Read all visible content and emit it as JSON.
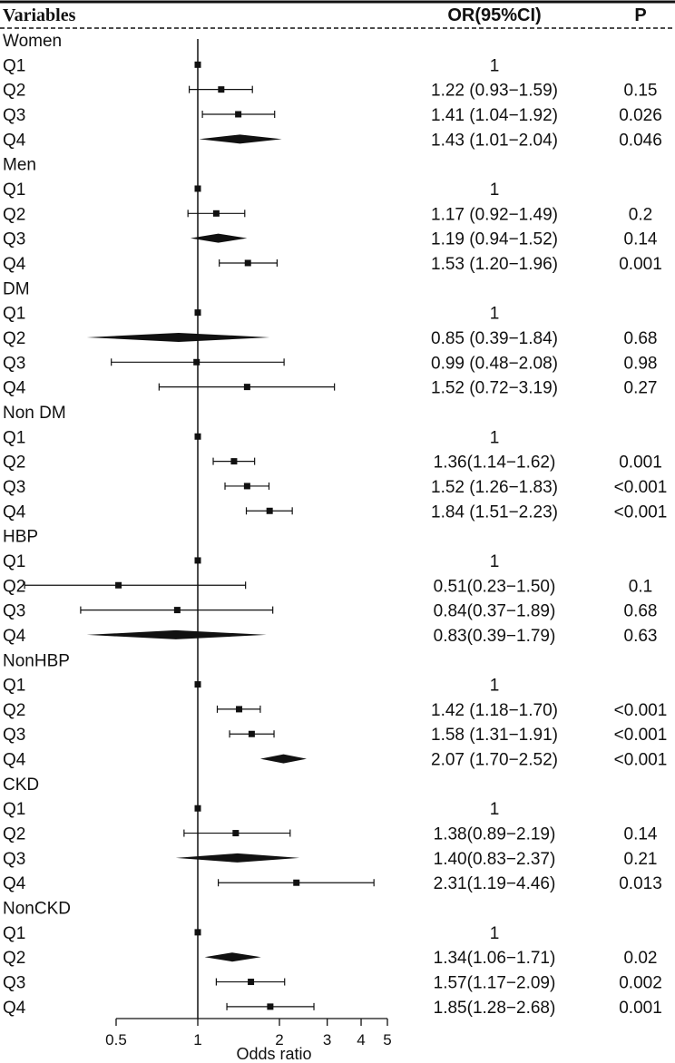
{
  "chart_data": {
    "type": "forest",
    "header": {
      "variables": "Variables",
      "or_ci": "OR(95%CI)",
      "p": "P"
    },
    "xlabel": "Odds ratio",
    "x_ticks": [
      {
        "value": 0.5,
        "label": "0.5"
      },
      {
        "value": 1,
        "label": "1"
      },
      {
        "value": 2,
        "label": "2"
      },
      {
        "value": 3,
        "label": "3"
      },
      {
        "value": 4,
        "label": "4"
      },
      {
        "value": 5,
        "label": "5"
      }
    ],
    "reference_line": 1,
    "groups": [
      {
        "name": "Women",
        "rows": [
          {
            "label": "Q1",
            "or_text": "1",
            "p": "",
            "or": 1,
            "lo": null,
            "hi": null,
            "marker": "square"
          },
          {
            "label": "Q2",
            "or_text": "1.22 (0.93−1.59)",
            "p": "0.15",
            "or": 1.22,
            "lo": 0.93,
            "hi": 1.59,
            "marker": "square"
          },
          {
            "label": "Q3",
            "or_text": "1.41 (1.04−1.92)",
            "p": "0.026",
            "or": 1.41,
            "lo": 1.04,
            "hi": 1.92,
            "marker": "square"
          },
          {
            "label": "Q4",
            "or_text": "1.43 (1.01−2.04)",
            "p": "0.046",
            "or": 1.43,
            "lo": 1.01,
            "hi": 2.04,
            "marker": "diamond"
          }
        ]
      },
      {
        "name": "Men",
        "rows": [
          {
            "label": "Q1",
            "or_text": "1",
            "p": "",
            "or": 1,
            "lo": null,
            "hi": null,
            "marker": "square"
          },
          {
            "label": "Q2",
            "or_text": "1.17 (0.92−1.49)",
            "p": "0.2",
            "or": 1.17,
            "lo": 0.92,
            "hi": 1.49,
            "marker": "square"
          },
          {
            "label": "Q3",
            "or_text": "1.19 (0.94−1.52)",
            "p": "0.14",
            "or": 1.19,
            "lo": 0.94,
            "hi": 1.52,
            "marker": "diamond"
          },
          {
            "label": "Q4",
            "or_text": "1.53 (1.20−1.96)",
            "p": "0.001",
            "or": 1.53,
            "lo": 1.2,
            "hi": 1.96,
            "marker": "square"
          }
        ]
      },
      {
        "name": "DM",
        "rows": [
          {
            "label": "Q1",
            "or_text": "1",
            "p": "",
            "or": 1,
            "lo": null,
            "hi": null,
            "marker": "square"
          },
          {
            "label": "Q2",
            "or_text": "0.85 (0.39−1.84)",
            "p": "0.68",
            "or": 0.85,
            "lo": 0.39,
            "hi": 1.84,
            "marker": "diamond"
          },
          {
            "label": "Q3",
            "or_text": "0.99 (0.48−2.08)",
            "p": "0.98",
            "or": 0.99,
            "lo": 0.48,
            "hi": 2.08,
            "marker": "square"
          },
          {
            "label": "Q4",
            "or_text": "1.52 (0.72−3.19)",
            "p": "0.27",
            "or": 1.52,
            "lo": 0.72,
            "hi": 3.19,
            "marker": "square"
          }
        ]
      },
      {
        "name": "Non DM",
        "rows": [
          {
            "label": "Q1",
            "or_text": "1",
            "p": "",
            "or": 1,
            "lo": null,
            "hi": null,
            "marker": "square"
          },
          {
            "label": "Q2",
            "or_text": "1.36(1.14−1.62)",
            "p": "0.001",
            "or": 1.36,
            "lo": 1.14,
            "hi": 1.62,
            "marker": "square"
          },
          {
            "label": "Q3",
            "or_text": "1.52 (1.26−1.83)",
            "p": "<0.001",
            "or": 1.52,
            "lo": 1.26,
            "hi": 1.83,
            "marker": "square"
          },
          {
            "label": "Q4",
            "or_text": "1.84 (1.51−2.23)",
            "p": "<0.001",
            "or": 1.84,
            "lo": 1.51,
            "hi": 2.23,
            "marker": "square"
          }
        ]
      },
      {
        "name": "HBP",
        "rows": [
          {
            "label": "Q1",
            "or_text": "1",
            "p": "",
            "or": 1,
            "lo": null,
            "hi": null,
            "marker": "square"
          },
          {
            "label": "Q2",
            "or_text": "0.51(0.23−1.50)",
            "p": "0.1",
            "or": 0.51,
            "lo": 0.23,
            "hi": 1.5,
            "marker": "square"
          },
          {
            "label": "Q3",
            "or_text": "0.84(0.37−1.89)",
            "p": "0.68",
            "or": 0.84,
            "lo": 0.37,
            "hi": 1.89,
            "marker": "square"
          },
          {
            "label": "Q4",
            "or_text": "0.83(0.39−1.79)",
            "p": "0.63",
            "or": 0.83,
            "lo": 0.39,
            "hi": 1.79,
            "marker": "diamond"
          }
        ]
      },
      {
        "name": "NonHBP",
        "rows": [
          {
            "label": "Q1",
            "or_text": "1",
            "p": "",
            "or": 1,
            "lo": null,
            "hi": null,
            "marker": "square"
          },
          {
            "label": "Q2",
            "or_text": "1.42 (1.18−1.70)",
            "p": "<0.001",
            "or": 1.42,
            "lo": 1.18,
            "hi": 1.7,
            "marker": "square"
          },
          {
            "label": "Q3",
            "or_text": "1.58 (1.31−1.91)",
            "p": "<0.001",
            "or": 1.58,
            "lo": 1.31,
            "hi": 1.91,
            "marker": "square"
          },
          {
            "label": "Q4",
            "or_text": "2.07 (1.70−2.52)",
            "p": "<0.001",
            "or": 2.07,
            "lo": 1.7,
            "hi": 2.52,
            "marker": "diamond"
          }
        ]
      },
      {
        "name": "CKD",
        "rows": [
          {
            "label": "Q1",
            "or_text": "1",
            "p": "",
            "or": 1,
            "lo": null,
            "hi": null,
            "marker": "square"
          },
          {
            "label": "Q2",
            "or_text": "1.38(0.89−2.19)",
            "p": "0.14",
            "or": 1.38,
            "lo": 0.89,
            "hi": 2.19,
            "marker": "square"
          },
          {
            "label": "Q3",
            "or_text": "1.40(0.83−2.37)",
            "p": "0.21",
            "or": 1.4,
            "lo": 0.83,
            "hi": 2.37,
            "marker": "diamond"
          },
          {
            "label": "Q4",
            "or_text": "2.31(1.19−4.46)",
            "p": "0.013",
            "or": 2.31,
            "lo": 1.19,
            "hi": 4.46,
            "marker": "square"
          }
        ]
      },
      {
        "name": "NonCKD",
        "rows": [
          {
            "label": "Q1",
            "or_text": "1",
            "p": "",
            "or": 1,
            "lo": null,
            "hi": null,
            "marker": "square"
          },
          {
            "label": "Q2",
            "or_text": "1.34(1.06−1.71)",
            "p": "0.02",
            "or": 1.34,
            "lo": 1.06,
            "hi": 1.71,
            "marker": "diamond"
          },
          {
            "label": "Q3",
            "or_text": "1.57(1.17−2.09)",
            "p": "0.002",
            "or": 1.57,
            "lo": 1.17,
            "hi": 2.09,
            "marker": "square"
          },
          {
            "label": "Q4",
            "or_text": "1.85(1.28−2.68)",
            "p": "0.001",
            "or": 1.85,
            "lo": 1.28,
            "hi": 2.68,
            "marker": "square"
          }
        ]
      }
    ]
  }
}
